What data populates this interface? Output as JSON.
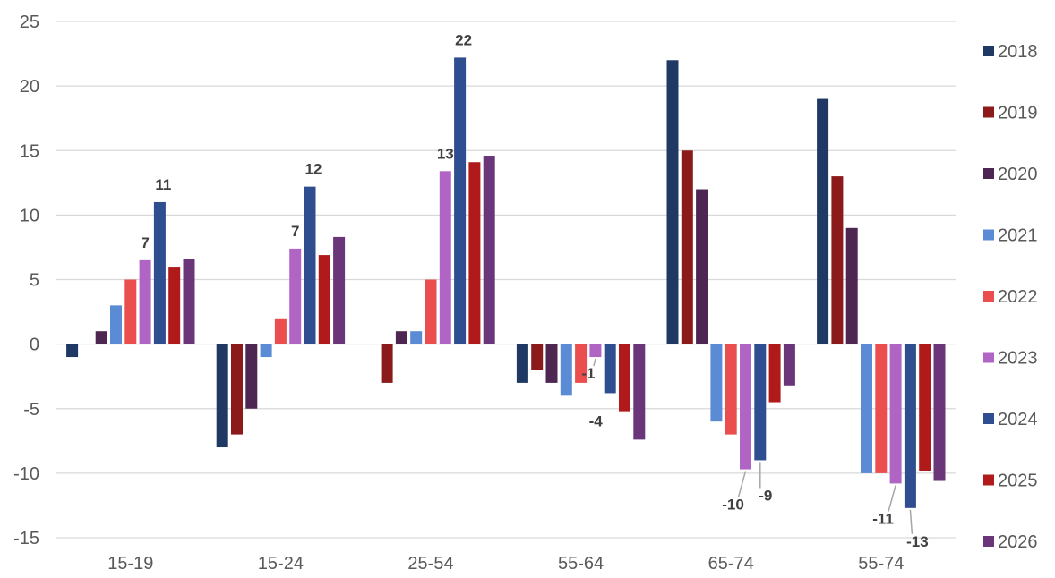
{
  "chart_data": {
    "type": "bar",
    "title": "",
    "xlabel": "",
    "ylabel": "",
    "ylim": [
      -15,
      25
    ],
    "yticks": [
      25,
      20,
      15,
      10,
      5,
      0,
      -5,
      -10,
      -15
    ],
    "grid": true,
    "legend_position": "right",
    "categories": [
      "15-19",
      "15-24",
      "25-54",
      "55-64",
      "65-74",
      "55-74"
    ],
    "series": [
      {
        "name": "2018",
        "color": "#1f3864",
        "values": [
          -1,
          -8,
          0,
          -3,
          22,
          19
        ]
      },
      {
        "name": "2019",
        "color": "#8b1a1a",
        "values": [
          0,
          -7,
          -3,
          -2,
          15,
          13
        ]
      },
      {
        "name": "2020",
        "color": "#4d2752",
        "values": [
          1,
          -5,
          1,
          -3,
          12,
          9
        ]
      },
      {
        "name": "2021",
        "color": "#5b8bd4",
        "values": [
          3,
          -1,
          1,
          -4,
          -6,
          -10
        ]
      },
      {
        "name": "2022",
        "color": "#ea4e4e",
        "values": [
          5,
          2,
          5,
          -3,
          -7,
          -10
        ]
      },
      {
        "name": "2023",
        "color": "#b065c4",
        "values": [
          6.5,
          7.4,
          13.4,
          -1,
          -9.7,
          -10.8
        ]
      },
      {
        "name": "2024",
        "color": "#2f4e8f",
        "values": [
          11,
          12.2,
          22.2,
          -3.8,
          -9,
          -12.7
        ]
      },
      {
        "name": "2025",
        "color": "#b01a1a",
        "values": [
          6,
          6.9,
          14.1,
          -5.2,
          -4.5,
          -9.8
        ]
      },
      {
        "name": "2026",
        "color": "#6a3679",
        "values": [
          6.6,
          8.3,
          14.6,
          -7.4,
          -3.2,
          -10.6
        ]
      }
    ],
    "annotations": [
      {
        "text": "11",
        "series": 6,
        "category": 0
      },
      {
        "text": "7",
        "series": 5,
        "category": 0
      },
      {
        "text": "12",
        "series": 6,
        "category": 1
      },
      {
        "text": "7",
        "series": 5,
        "category": 1
      },
      {
        "text": "22",
        "series": 6,
        "category": 2
      },
      {
        "text": "13",
        "series": 5,
        "category": 2
      },
      {
        "text": "-1",
        "series": 5,
        "category": 3
      },
      {
        "text": "-4",
        "series": 6,
        "category": 3
      },
      {
        "text": "-10",
        "series": 5,
        "category": 4
      },
      {
        "text": "-9",
        "series": 6,
        "category": 4
      },
      {
        "text": "-11",
        "series": 5,
        "category": 5
      },
      {
        "text": "-13",
        "series": 6,
        "category": 5
      }
    ]
  }
}
